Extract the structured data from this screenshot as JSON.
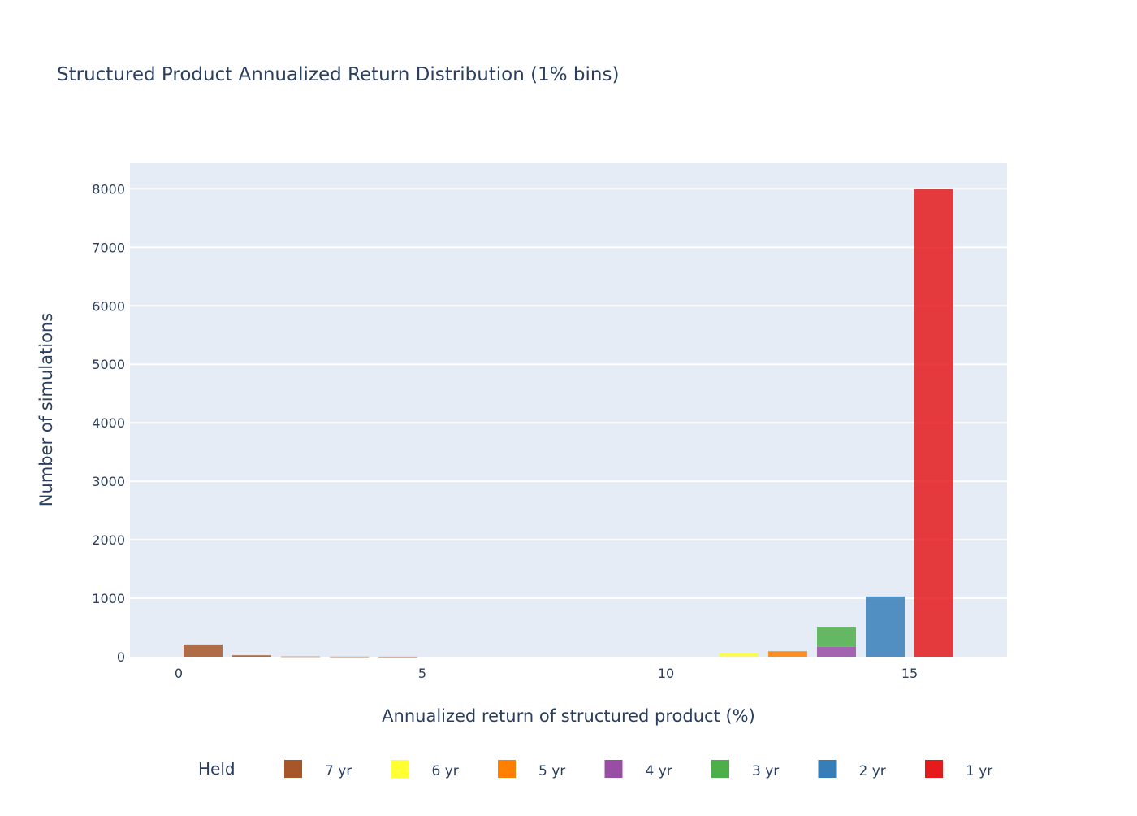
{
  "chart_data": {
    "type": "bar",
    "barmode": "stack",
    "title": "Structured Product Annualized Return Distribution (1% bins)",
    "xlabel": "Annualized return of structured product (%)",
    "ylabel": "Number of simulations",
    "xlim": [
      -1,
      17
    ],
    "ylim": [
      0,
      8450
    ],
    "xticks": [
      0,
      5,
      10,
      15
    ],
    "yticks": [
      0,
      1000,
      2000,
      3000,
      4000,
      5000,
      6000,
      7000,
      8000
    ],
    "bin_width": 1,
    "grid": true,
    "legend_title": "Held",
    "legend_position": "bottom",
    "series": [
      {
        "name": "7 yr",
        "color": "#a65628",
        "bins": [
          {
            "x": 0.5,
            "value": 210
          },
          {
            "x": 1.5,
            "value": 25
          },
          {
            "x": 2.5,
            "value": 4
          },
          {
            "x": 3.5,
            "value": 2
          },
          {
            "x": 4.5,
            "value": 1
          }
        ]
      },
      {
        "name": "6 yr",
        "color": "#ffff33",
        "bins": [
          {
            "x": 11.5,
            "value": 55
          }
        ]
      },
      {
        "name": "5 yr",
        "color": "#ff7f00",
        "bins": [
          {
            "x": 12.5,
            "value": 95
          }
        ]
      },
      {
        "name": "4 yr",
        "color": "#984ea3",
        "bins": [
          {
            "x": 13.5,
            "value": 170
          }
        ]
      },
      {
        "name": "3 yr",
        "color": "#4daf4a",
        "bins": [
          {
            "x": 13.5,
            "value": 330
          }
        ]
      },
      {
        "name": "2 yr",
        "color": "#377eb8",
        "bins": [
          {
            "x": 14.5,
            "value": 1030
          }
        ]
      },
      {
        "name": "1 yr",
        "color": "#e41a1c",
        "bins": [
          {
            "x": 15.5,
            "value": 8000
          }
        ]
      }
    ]
  }
}
